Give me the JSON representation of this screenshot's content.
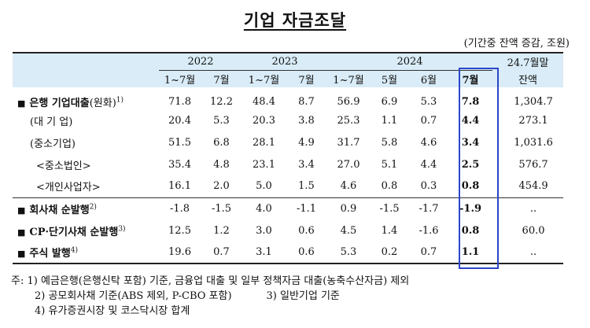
{
  "title": "기업 자금조달",
  "unit": "(기간중 잔액 증감, 조원)",
  "header": {
    "years": [
      "2022",
      "2023",
      "2024"
    ],
    "sub": [
      "1~7월",
      "7월",
      "1~7월",
      "7월",
      "1~7월",
      "5월",
      "6월",
      "7월"
    ],
    "last_col_1": "24.7월말",
    "last_col_2": "잔액"
  },
  "rows": [
    {
      "label": "은행 기업대출",
      "label_suffix": "(원화)",
      "sup": "1)",
      "values": [
        "71.8",
        "12.2",
        "48.4",
        "8.7",
        "56.9",
        "6.9",
        "5.3",
        "7.8",
        "1,304.7"
      ]
    },
    {
      "label": "(대 기 업)",
      "values": [
        "20.4",
        "5.3",
        "20.3",
        "3.8",
        "25.3",
        "1.1",
        "0.7",
        "4.4",
        "273.1"
      ]
    },
    {
      "label": "(중소기업)",
      "values": [
        "51.5",
        "6.8",
        "28.1",
        "4.9",
        "31.7",
        "5.8",
        "4.6",
        "3.4",
        "1,031.6"
      ]
    },
    {
      "label": "<중소법인>",
      "values": [
        "35.4",
        "4.8",
        "23.1",
        "3.4",
        "27.0",
        "5.1",
        "4.4",
        "2.5",
        "576.7"
      ]
    },
    {
      "label": "<개인사업자>",
      "values": [
        "16.1",
        "2.0",
        "5.0",
        "1.5",
        "4.6",
        "0.8",
        "0.3",
        "0.8",
        "454.9"
      ]
    },
    {
      "label": "회사채 순발행",
      "sup": "2)",
      "values": [
        "-1.8",
        "-1.5",
        "4.0",
        "-1.1",
        "0.9",
        "-1.5",
        "-1.7",
        "-1.9",
        ".."
      ]
    },
    {
      "label": "CP·단기사채 순발행",
      "sup": "3)",
      "values": [
        "12.5",
        "1.2",
        "3.0",
        "0.6",
        "4.5",
        "1.4",
        "-1.6",
        "0.8",
        "60.0"
      ]
    },
    {
      "label": "주식 발행",
      "sup": "4)",
      "values": [
        "19.6",
        "0.7",
        "3.1",
        "0.6",
        "5.3",
        "0.2",
        "0.7",
        "1.1",
        ".."
      ]
    }
  ],
  "notes": {
    "prefix": "주:",
    "n1": "1) 예금은행(은행신탁 포함) 기준, 금융업 대출 및 일부 정책자금 대출(농축수산자금) 제외",
    "n2": "2) 공모회사채 기준(ABS 제외, P-CBO 포함)",
    "n3": "3) 일반기업 기준",
    "n4": "4) 유가증권시장 및 코스닥시장 합계"
  },
  "colors": {
    "header_bg": "#d9ecf7",
    "highlight": "#2c46c9"
  }
}
